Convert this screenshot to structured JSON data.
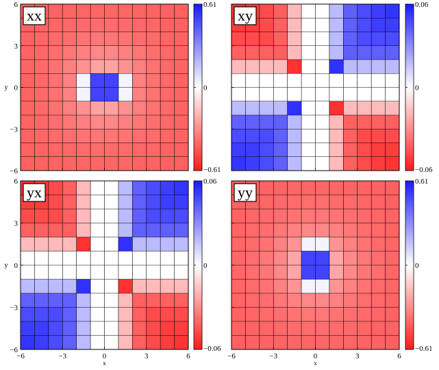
{
  "chart_data": {
    "type": "heatmap",
    "xlabel": "x",
    "ylabel": "y",
    "x_ticks": [
      "−6",
      "−3",
      "0",
      "3",
      "6"
    ],
    "y_ticks": [
      "6",
      "3",
      "0",
      "−3",
      "−6"
    ],
    "xlim": [
      -6,
      6
    ],
    "ylim": [
      -6,
      6
    ],
    "grid": "12 x 12 cells, centers at ±0.5 … ±5.5",
    "colormap": {
      "negative": "#ff1a1a",
      "zero": "#ffffff",
      "positive": "#1a1aff"
    },
    "panels": [
      {
        "label": "xx",
        "vmax": 0.61,
        "colorbar_ticks": [
          "0.61",
          "0",
          "−0.61"
        ],
        "pattern": "central-peak",
        "center_value": 0.5
      },
      {
        "label": "xy",
        "vmax": 0.06,
        "colorbar_ticks": [
          "0.06",
          "0",
          "−0.06"
        ],
        "pattern": "quadrupole",
        "sign": 1
      },
      {
        "label": "yx",
        "vmax": 0.06,
        "colorbar_ticks": [
          "0.06",
          "0",
          "−0.06"
        ],
        "pattern": "quadrupole",
        "sign": 1
      },
      {
        "label": "yy",
        "vmax": 0.61,
        "colorbar_ticks": [
          "0.61",
          "0",
          "−0.61"
        ],
        "pattern": "central-peak-vertical",
        "center_value": 0.5
      }
    ]
  }
}
